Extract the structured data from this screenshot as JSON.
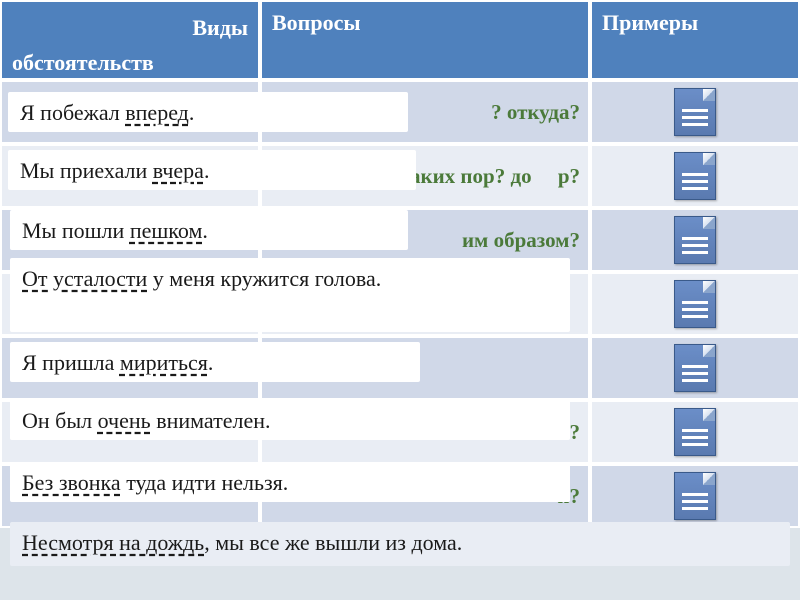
{
  "colors": {
    "header_bg": "#4f81bd",
    "row_alt_a": "#d0d8e8",
    "row_alt_b": "#e9edf4",
    "question_text": "#4b7a3a",
    "icon_fill": "#6b8ec8"
  },
  "table": {
    "headers": {
      "col1_line1": "Виды",
      "col1_line2": "обстоятельств",
      "col2": "Вопросы",
      "col3": "Примеры"
    },
    "rows": [
      {
        "q": "? откуда?"
      },
      {
        "q": "каких пор? до     р?"
      },
      {
        "q": "им образом?"
      },
      {
        "q": ""
      },
      {
        "q": ""
      },
      {
        "q": "ени?"
      },
      {
        "q": "и?"
      }
    ]
  },
  "overlays": {
    "o1_pre": "Я побежал ",
    "o1_u": "вперед",
    "o2_pre": "Мы приехали ",
    "o2_u": "вчера",
    "o3_pre": "Мы пошли ",
    "o3_u": "пешком",
    "o4_u": "От усталости",
    "o4_post": " у меня кружится голова.",
    "o5_pre": "Я пришла ",
    "o5_u": "мириться",
    "o6_pre": "Он был ",
    "o6_u": "очень",
    "o6_post": " внимателен.",
    "o7_u": "Без звонка",
    "o7_post": " туда идти нельзя.",
    "o8_u": "Несмотря на дождь",
    "o8_post": ", мы все же вышли из дома."
  },
  "punct": {
    "dot": "."
  }
}
